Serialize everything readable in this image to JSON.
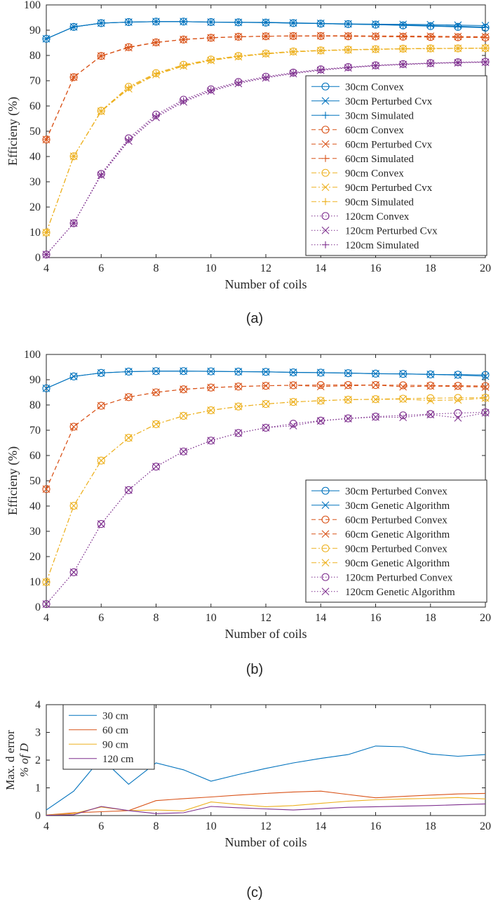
{
  "colors": {
    "blue": "#0072BD",
    "orange": "#D95319",
    "yellow": "#EDB120",
    "purple": "#7E2F8E",
    "axis": "#262626",
    "grid": "#e6e6e6"
  },
  "chart_data": [
    {
      "type": "line",
      "panel_label": "(a)",
      "title": "",
      "xlabel": "Number of coils",
      "ylabel": "Efficieny (%)",
      "xlim": [
        4,
        20
      ],
      "ylim": [
        0,
        100
      ],
      "x_ticks": [
        4,
        6,
        8,
        10,
        12,
        14,
        16,
        18,
        20
      ],
      "y_ticks": [
        0,
        10,
        20,
        30,
        40,
        50,
        60,
        70,
        80,
        90,
        100
      ],
      "grid": false,
      "legend_position": "middle-right",
      "x": [
        4,
        5,
        6,
        7,
        8,
        9,
        10,
        11,
        12,
        13,
        14,
        15,
        16,
        17,
        18,
        19,
        20
      ],
      "series": [
        {
          "name": "30cm Convex",
          "color": "blue",
          "line": "solid",
          "marker": "circle",
          "values": [
            86.6,
            91.3,
            92.8,
            93.2,
            93.4,
            93.4,
            93.2,
            93.1,
            93.0,
            92.8,
            92.6,
            92.4,
            92.2,
            91.9,
            91.6,
            91.3,
            91.0
          ]
        },
        {
          "name": "30cm Perturbed Cvx",
          "color": "blue",
          "line": "solid",
          "marker": "x",
          "values": [
            86.6,
            91.3,
            92.8,
            93.2,
            93.4,
            93.4,
            93.2,
            93.1,
            93.1,
            92.9,
            92.7,
            92.5,
            92.4,
            92.3,
            92.2,
            92.0,
            91.8
          ]
        },
        {
          "name": "30cm Simulated",
          "color": "blue",
          "line": "solid",
          "marker": "plus",
          "values": [
            86.6,
            91.3,
            92.8,
            93.2,
            93.4,
            93.4,
            93.2,
            93.1,
            93.0,
            92.8,
            92.6,
            92.4,
            92.2,
            92.0,
            91.8,
            91.5,
            91.2
          ]
        },
        {
          "name": "60cm Convex",
          "color": "orange",
          "line": "dashed",
          "marker": "circle",
          "values": [
            46.7,
            71.4,
            79.8,
            83.3,
            85.2,
            86.3,
            87.0,
            87.4,
            87.6,
            87.7,
            87.7,
            87.6,
            87.5,
            87.4,
            87.3,
            87.2,
            87.1
          ]
        },
        {
          "name": "60cm Perturbed Cvx",
          "color": "orange",
          "line": "dashed",
          "marker": "x",
          "values": [
            46.7,
            71.4,
            79.8,
            83.1,
            85.1,
            86.3,
            87.0,
            87.4,
            87.6,
            87.7,
            87.8,
            87.8,
            87.7,
            87.7,
            87.6,
            87.5,
            87.4
          ]
        },
        {
          "name": "60cm Simulated",
          "color": "orange",
          "line": "dashed",
          "marker": "plus",
          "values": [
            46.7,
            71.4,
            79.8,
            83.2,
            85.2,
            86.3,
            87.0,
            87.4,
            87.6,
            87.7,
            87.7,
            87.6,
            87.5,
            87.4,
            87.3,
            87.2,
            87.1
          ]
        },
        {
          "name": "90cm Convex",
          "color": "yellow",
          "line": "dashdot",
          "marker": "circle",
          "values": [
            9.9,
            40.1,
            58.1,
            67.6,
            73.0,
            76.3,
            78.4,
            79.8,
            80.8,
            81.6,
            82.0,
            82.3,
            82.5,
            82.7,
            82.8,
            82.8,
            82.9
          ]
        },
        {
          "name": "90cm Perturbed Cvx",
          "color": "yellow",
          "line": "dashdot",
          "marker": "x",
          "values": [
            9.9,
            40.1,
            57.9,
            66.8,
            72.4,
            75.8,
            78.0,
            79.5,
            80.6,
            81.4,
            81.9,
            82.2,
            82.4,
            82.6,
            82.7,
            82.8,
            82.9
          ]
        },
        {
          "name": "90cm Simulated",
          "color": "yellow",
          "line": "dashdot",
          "marker": "plus",
          "values": [
            9.9,
            40.1,
            58.0,
            67.2,
            72.7,
            76.0,
            78.2,
            79.6,
            80.7,
            81.5,
            81.9,
            82.2,
            82.4,
            82.6,
            82.7,
            82.8,
            82.9
          ]
        },
        {
          "name": "120cm Convex",
          "color": "purple",
          "line": "dotted",
          "marker": "circle",
          "values": [
            1.2,
            13.6,
            33.1,
            47.2,
            56.6,
            62.5,
            66.6,
            69.5,
            71.6,
            73.2,
            74.5,
            75.4,
            76.1,
            76.6,
            77.0,
            77.3,
            77.5
          ]
        },
        {
          "name": "120cm Perturbed Cvx",
          "color": "purple",
          "line": "dotted",
          "marker": "x",
          "values": [
            1.2,
            13.6,
            32.6,
            46.1,
            55.5,
            61.6,
            65.9,
            68.9,
            71.1,
            72.8,
            74.1,
            75.1,
            75.9,
            76.4,
            76.8,
            77.1,
            77.3
          ]
        },
        {
          "name": "120cm Simulated",
          "color": "purple",
          "line": "dotted",
          "marker": "plus",
          "values": [
            1.2,
            13.6,
            32.8,
            46.6,
            56.0,
            62.0,
            66.2,
            69.2,
            71.3,
            73.0,
            74.3,
            75.2,
            76.0,
            76.5,
            76.9,
            77.2,
            77.4
          ]
        }
      ]
    },
    {
      "type": "line",
      "panel_label": "(b)",
      "title": "",
      "xlabel": "Number of coils",
      "ylabel": "Efficieny (%)",
      "xlim": [
        4,
        20
      ],
      "ylim": [
        0,
        100
      ],
      "x_ticks": [
        4,
        6,
        8,
        10,
        12,
        14,
        16,
        18,
        20
      ],
      "y_ticks": [
        0,
        10,
        20,
        30,
        40,
        50,
        60,
        70,
        80,
        90,
        100
      ],
      "grid": false,
      "legend_position": "bottom-right",
      "x": [
        4,
        5,
        6,
        7,
        8,
        9,
        10,
        11,
        12,
        13,
        14,
        15,
        16,
        17,
        18,
        19,
        20
      ],
      "series": [
        {
          "name": "30cm Perturbed Convex",
          "color": "blue",
          "line": "solid",
          "marker": "circle",
          "values": [
            86.6,
            91.3,
            92.7,
            93.2,
            93.4,
            93.4,
            93.3,
            93.2,
            93.1,
            92.9,
            92.8,
            92.6,
            92.4,
            92.3,
            92.1,
            92.0,
            91.9
          ]
        },
        {
          "name": "30cm Genetic Algorithm",
          "color": "blue",
          "line": "solid",
          "marker": "x",
          "values": [
            86.6,
            91.3,
            92.7,
            93.2,
            93.4,
            93.4,
            93.3,
            93.2,
            93.1,
            92.9,
            92.8,
            92.6,
            92.4,
            92.3,
            92.1,
            91.8,
            91.4
          ]
        },
        {
          "name": "60cm Perturbed Convex",
          "color": "orange",
          "line": "dashed",
          "marker": "circle",
          "values": [
            46.7,
            71.4,
            79.7,
            83.1,
            85.0,
            86.2,
            86.9,
            87.3,
            87.6,
            87.8,
            87.9,
            87.9,
            87.9,
            87.8,
            87.7,
            87.6,
            87.5
          ]
        },
        {
          "name": "60cm Genetic Algorithm",
          "color": "orange",
          "line": "dashed",
          "marker": "x",
          "values": [
            46.7,
            71.4,
            79.7,
            83.1,
            85.0,
            86.2,
            86.9,
            87.3,
            87.6,
            87.8,
            87.3,
            87.6,
            87.9,
            87.2,
            87.5,
            87.3,
            87.1
          ]
        },
        {
          "name": "90cm Perturbed Convex",
          "color": "yellow",
          "line": "dashdot",
          "marker": "circle",
          "values": [
            9.9,
            40.1,
            58.0,
            67.0,
            72.4,
            75.7,
            77.9,
            79.4,
            80.4,
            81.2,
            81.7,
            82.1,
            82.3,
            82.5,
            82.7,
            82.8,
            82.9
          ]
        },
        {
          "name": "90cm Genetic Algorithm",
          "color": "yellow",
          "line": "dashdot",
          "marker": "x",
          "values": [
            9.9,
            40.1,
            58.0,
            67.0,
            72.4,
            75.7,
            77.9,
            79.4,
            80.4,
            81.2,
            81.7,
            82.1,
            82.2,
            82.3,
            81.8,
            82.0,
            82.7
          ]
        },
        {
          "name": "120cm Perturbed Convex",
          "color": "purple",
          "line": "dotted",
          "marker": "circle",
          "values": [
            1.2,
            13.8,
            32.9,
            46.3,
            55.6,
            61.6,
            65.9,
            68.9,
            71.0,
            72.6,
            73.8,
            74.7,
            75.4,
            75.9,
            76.4,
            76.8,
            77.1
          ]
        },
        {
          "name": "120cm Genetic Algorithm",
          "color": "purple",
          "line": "dotted",
          "marker": "x",
          "values": [
            1.2,
            13.8,
            32.9,
            46.3,
            55.6,
            61.6,
            65.9,
            68.9,
            71.0,
            71.8,
            73.7,
            74.6,
            75.2,
            75.1,
            76.2,
            74.9,
            76.9
          ]
        }
      ]
    },
    {
      "type": "line",
      "panel_label": "(c)",
      "title": "",
      "xlabel": "Number of coils",
      "ylabel_line1": "Max. d error",
      "ylabel_line2": "% of D",
      "xlim": [
        4,
        20
      ],
      "ylim": [
        0,
        4
      ],
      "x_ticks": [
        4,
        6,
        8,
        10,
        12,
        14,
        16,
        18,
        20
      ],
      "y_ticks": [
        0,
        1,
        2,
        3,
        4
      ],
      "grid": false,
      "legend_position": "top-left",
      "x": [
        4,
        5,
        6,
        7,
        8,
        9,
        10,
        11,
        12,
        13,
        14,
        15,
        16,
        17,
        18,
        19,
        20
      ],
      "series": [
        {
          "name": "30 cm",
          "color": "blue",
          "line": "solid",
          "marker": "none",
          "values": [
            0.2,
            0.88,
            2.07,
            1.13,
            1.9,
            1.65,
            1.24,
            1.48,
            1.7,
            1.9,
            2.06,
            2.2,
            2.51,
            2.48,
            2.22,
            2.14,
            2.2
          ]
        },
        {
          "name": "60 cm",
          "color": "orange",
          "line": "solid",
          "marker": "none",
          "values": [
            0.02,
            0.1,
            0.14,
            0.18,
            0.54,
            0.61,
            0.67,
            0.74,
            0.8,
            0.85,
            0.88,
            0.76,
            0.64,
            0.69,
            0.74,
            0.78,
            0.8
          ]
        },
        {
          "name": "90 cm",
          "color": "yellow",
          "line": "solid",
          "marker": "none",
          "values": [
            0.02,
            0.07,
            0.31,
            0.18,
            0.2,
            0.17,
            0.49,
            0.4,
            0.32,
            0.36,
            0.44,
            0.52,
            0.57,
            0.6,
            0.62,
            0.65,
            0.6
          ]
        },
        {
          "name": "120 cm",
          "color": "purple",
          "line": "solid",
          "marker": "none",
          "values": [
            0.01,
            0.03,
            0.33,
            0.18,
            0.07,
            0.1,
            0.33,
            0.28,
            0.24,
            0.2,
            0.25,
            0.3,
            0.32,
            0.34,
            0.36,
            0.39,
            0.42
          ]
        }
      ]
    }
  ]
}
